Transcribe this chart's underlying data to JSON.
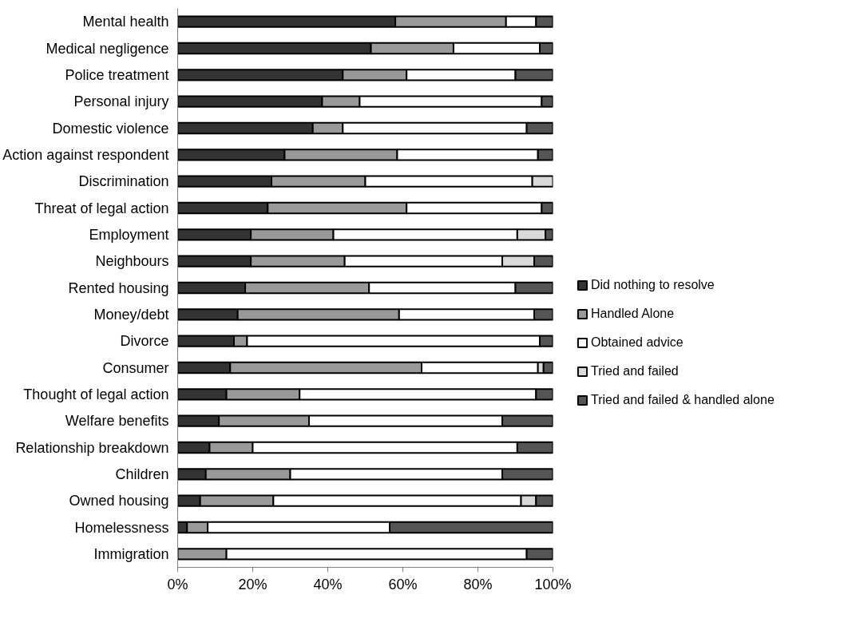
{
  "chart_data": {
    "type": "bar",
    "orientation": "horizontal",
    "stacked": true,
    "categories": [
      "Mental health",
      "Medical negligence",
      "Police treatment",
      "Personal injury",
      "Domestic violence",
      "Action against respondent",
      "Discrimination",
      "Threat of legal action",
      "Employment",
      "Neighbours",
      "Rented housing",
      "Money/debt",
      "Divorce",
      "Consumer",
      "Thought of legal action",
      "Welfare benefits",
      "Relationship breakdown",
      "Children",
      "Owned housing",
      "Homelessness",
      "Immigration"
    ],
    "series": [
      {
        "name": "Did nothing to resolve",
        "color": "#333333",
        "values": [
          58,
          51.5,
          44,
          38.5,
          36,
          28.5,
          25,
          24,
          19.5,
          19.5,
          18,
          16,
          15,
          14,
          13,
          11,
          8.5,
          7.5,
          6,
          2.5,
          0
        ]
      },
      {
        "name": "Handled Alone",
        "color": "#999999",
        "values": [
          29.5,
          22,
          17,
          10,
          8,
          30,
          25,
          37,
          22,
          25,
          33,
          43,
          3.5,
          51,
          19.5,
          24,
          11.5,
          22.5,
          19.5,
          5.5,
          13
        ]
      },
      {
        "name": "Obtained advice",
        "color": "#ffffff",
        "values": [
          8,
          23,
          29,
          48.5,
          49,
          37.5,
          44.5,
          36,
          49,
          42,
          39,
          36,
          78,
          31,
          63,
          51.5,
          70.5,
          56.5,
          66,
          48.5,
          80
        ]
      },
      {
        "name": "Tried and failed",
        "color": "#d9d9d9",
        "values": [
          0,
          0,
          0,
          0,
          0,
          0,
          5.5,
          0,
          7.5,
          8.5,
          0,
          0,
          0,
          1.5,
          0,
          0,
          0,
          0,
          4,
          0,
          0
        ]
      },
      {
        "name": "Tried and failed & handled alone",
        "color": "#555555",
        "values": [
          4.5,
          3.5,
          10,
          3,
          7,
          4,
          0,
          3,
          2,
          5,
          10,
          5,
          3.5,
          2.5,
          4.5,
          13.5,
          9.5,
          13.5,
          4.5,
          43.5,
          7
        ]
      }
    ],
    "xlim": [
      0,
      100
    ],
    "xticks": [
      {
        "value": 0,
        "label": "0%"
      },
      {
        "value": 20,
        "label": "20%"
      },
      {
        "value": 40,
        "label": "40%"
      },
      {
        "value": 60,
        "label": "60%"
      },
      {
        "value": 80,
        "label": "80%"
      },
      {
        "value": 100,
        "label": "100%"
      }
    ],
    "grid": false,
    "legend": "right"
  }
}
